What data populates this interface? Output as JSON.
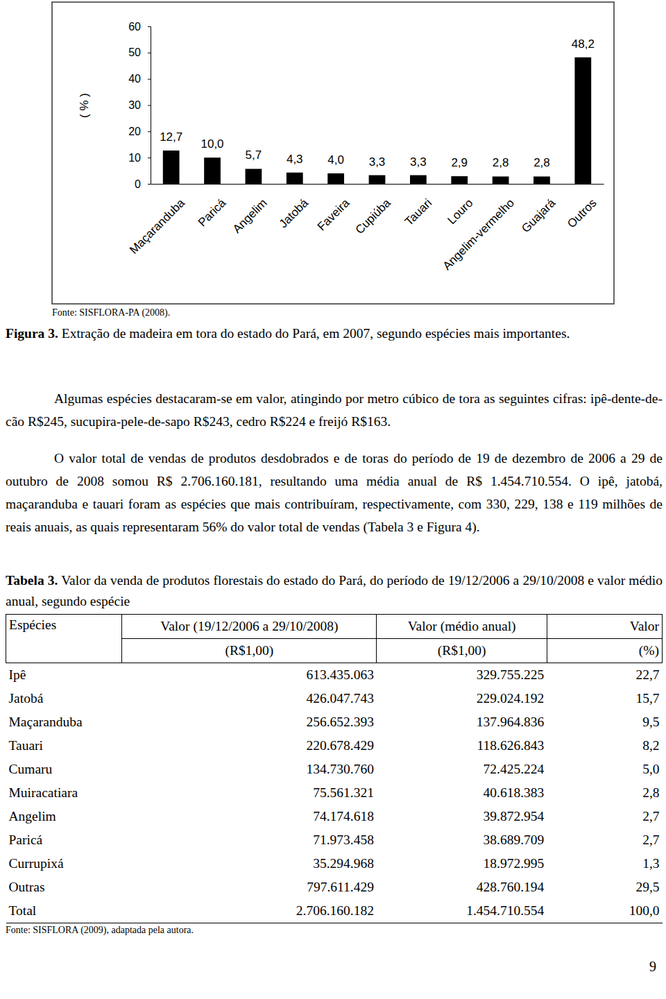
{
  "chart_data": {
    "type": "bar",
    "y_label": "( % )",
    "categories": [
      "Maçaranduba",
      "Paricá",
      "Angelim",
      "Jatobá",
      "Faveira",
      "Cupiúba",
      "Tauari",
      "Louro",
      "Angelim-vermelho",
      "Guajará",
      "Outros"
    ],
    "values": [
      12.7,
      10.0,
      5.7,
      4.3,
      4.0,
      3.3,
      3.3,
      2.9,
      2.8,
      2.8,
      48.2
    ],
    "value_labels": [
      "12,7",
      "10,0",
      "5,7",
      "4,3",
      "4,0",
      "3,3",
      "3,3",
      "2,9",
      "2,8",
      "2,8",
      "48,2"
    ],
    "color": "#000000",
    "ylim": [
      0,
      60
    ],
    "yticks": [
      0,
      10,
      20,
      30,
      40,
      50,
      60
    ],
    "data_labels": true,
    "grid": false
  },
  "document": {
    "figure": {
      "source": "Fonte: SISFLORA-PA (2008).",
      "label": "Figura 3.",
      "caption": "Extração de madeira em tora do estado do Pará, em 2007, segundo espécies mais importantes."
    },
    "paragraphs": [
      "Algumas espécies destacaram-se em valor, atingindo por metro cúbico de tora as seguintes cifras: ipê-dente-de-cão R$245, sucupira-pele-de-sapo R$243, cedro R$224 e freijó R$163.",
      "O valor total de vendas de produtos desdobrados e de toras do período de 19 de dezembro de 2006 a 29 de outubro de 2008 somou R$ 2.706.160.181, resultando uma média anual de R$ 1.454.710.554. O ipê, jatobá, maçaranduba e tauari foram as espécies que mais contribuíram, respectivamente, com 330, 229, 138 e 119 milhões de reais anuais, as quais representaram 56% do valor total de vendas (Tabela 3 e Figura 4)."
    ],
    "table": {
      "label": "Tabela 3.",
      "caption": "Valor da venda de produtos florestais do estado do Pará, do período de 19/12/2006 a 29/10/2008 e valor médio anual, segundo espécie",
      "header": [
        "Espécies",
        "Valor (19/12/2006 a 29/10/2008)",
        "Valor (médio anual)",
        "Valor"
      ],
      "units": [
        "(R$1,00)",
        "(R$1,00)",
        "(%)"
      ],
      "rows": [
        [
          "Ipê",
          "613.435.063",
          "329.755.225",
          "22,7"
        ],
        [
          "Jatobá",
          "426.047.743",
          "229.024.192",
          "15,7"
        ],
        [
          "Maçaranduba",
          "256.652.393",
          "137.964.836",
          "9,5"
        ],
        [
          "Tauari",
          "220.678.429",
          "118.626.843",
          "8,2"
        ],
        [
          "Cumaru",
          "134.730.760",
          "72.425.224",
          "5,0"
        ],
        [
          "Muiracatiara",
          "75.561.321",
          "40.618.383",
          "2,8"
        ],
        [
          "Angelim",
          "74.174.618",
          "39.872.954",
          "2,7"
        ],
        [
          "Paricá",
          "71.973.458",
          "38.689.709",
          "2,7"
        ],
        [
          "Currupixá",
          "35.294.968",
          "18.972.995",
          "1,3"
        ],
        [
          "Outras",
          "797.611.429",
          "428.760.194",
          "29,5"
        ],
        [
          "Total",
          "2.706.160.182",
          "1.454.710.554",
          "100,0"
        ]
      ],
      "source": "Fonte: SISFLORA (2009), adaptada pela autora."
    },
    "page_number": "9"
  }
}
